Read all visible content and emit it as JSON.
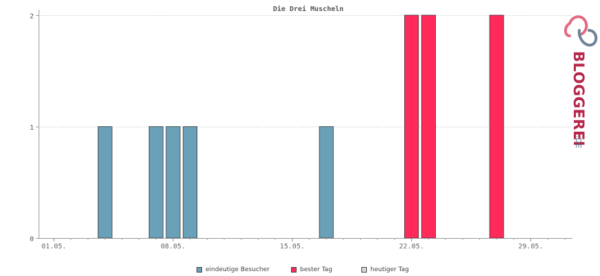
{
  "chart_data": {
    "type": "bar",
    "title": "Die Drei Muscheln",
    "xlabel": "",
    "ylabel": "",
    "ylim": [
      0,
      2
    ],
    "yticks": [
      0,
      1,
      2
    ],
    "grid": true,
    "legend_position": "bottom",
    "x_range_days": [
      1,
      31
    ],
    "x_tick_days": [
      1,
      8,
      15,
      22,
      29
    ],
    "x_tick_labels": [
      "01.05.",
      "08.05.",
      "15.05.",
      "22.05.",
      "29.05."
    ],
    "series": [
      {
        "name": "eindeutige Besucher",
        "color": "#6aa0b8",
        "points": [
          {
            "day": 4,
            "value": 1
          },
          {
            "day": 7,
            "value": 1
          },
          {
            "day": 8,
            "value": 1
          },
          {
            "day": 9,
            "value": 1
          },
          {
            "day": 17,
            "value": 1
          }
        ]
      },
      {
        "name": "bester Tag",
        "color": "#ff2a5a",
        "points": [
          {
            "day": 22,
            "value": 2
          },
          {
            "day": 23,
            "value": 2
          },
          {
            "day": 27,
            "value": 2
          }
        ]
      },
      {
        "name": "heutiger Tag",
        "color": "#d8d8d8",
        "points": []
      }
    ]
  },
  "logo": {
    "text_main": "BLOGGEREI",
    "text_suffix": ".DE",
    "colors": {
      "main": "#b5274b",
      "suffix": "#5a6f86",
      "icon_pink": "#e26a80",
      "icon_blue": "#6f8296"
    }
  }
}
